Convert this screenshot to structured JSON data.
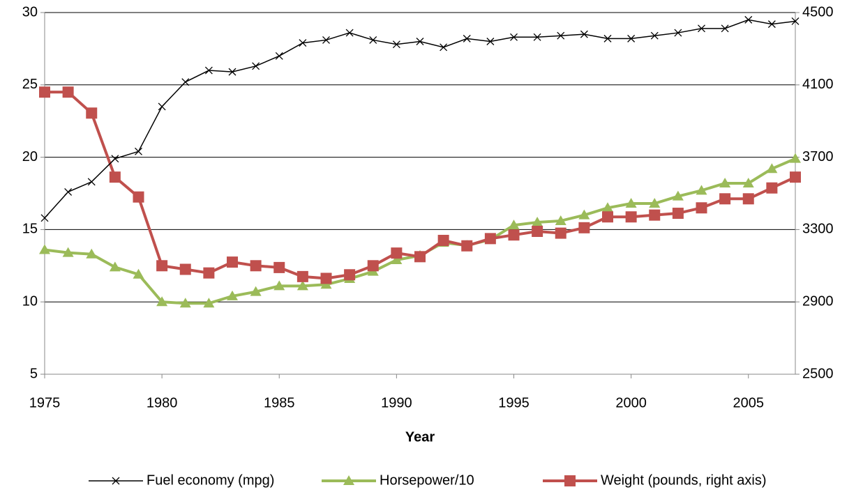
{
  "chart_data": {
    "type": "line",
    "x": [
      1975,
      1976,
      1977,
      1978,
      1979,
      1980,
      1981,
      1982,
      1983,
      1984,
      1985,
      1986,
      1987,
      1988,
      1989,
      1990,
      1991,
      1992,
      1993,
      1994,
      1995,
      1996,
      1997,
      1998,
      1999,
      2000,
      2001,
      2002,
      2003,
      2004,
      2005,
      2006,
      2007
    ],
    "xlim": [
      1975,
      2007
    ],
    "xticks": [
      1975,
      1980,
      1985,
      1990,
      1995,
      2000,
      2005
    ],
    "ylim": [
      5,
      30
    ],
    "yticks": [
      5,
      10,
      15,
      20,
      25,
      30
    ],
    "y2lim": [
      2500,
      4500
    ],
    "y2ticks": [
      2500,
      2900,
      3300,
      3700,
      4100,
      4500
    ],
    "xlabel": "Year",
    "grid": true,
    "legend": "bottom",
    "series": [
      {
        "name": "Fuel economy (mpg)",
        "color": "#000000",
        "marker": "x",
        "values": [
          15.8,
          17.6,
          18.3,
          19.9,
          20.4,
          23.5,
          25.2,
          26.0,
          25.9,
          26.3,
          27.0,
          27.9,
          28.1,
          28.6,
          28.1,
          27.8,
          28.0,
          27.6,
          28.2,
          28.0,
          28.3,
          28.3,
          28.4,
          28.5,
          28.2,
          28.2,
          28.4,
          28.6,
          28.9,
          28.9,
          29.5,
          29.2,
          29.4
        ]
      },
      {
        "name": "Horsepower/10",
        "color": "#9bbb59",
        "marker": "triangle",
        "values": [
          13.6,
          13.4,
          13.3,
          12.4,
          11.9,
          10.0,
          9.9,
          9.9,
          10.4,
          10.7,
          11.1,
          11.1,
          11.2,
          11.6,
          12.1,
          12.9,
          13.2,
          14.1,
          13.9,
          14.3,
          15.3,
          15.5,
          15.6,
          16.0,
          16.5,
          16.8,
          16.8,
          17.3,
          17.7,
          18.2,
          18.2,
          19.2,
          19.9
        ]
      },
      {
        "name": "Weight (pounds, right axis)",
        "color": "#c0504d",
        "marker": "square",
        "axis": "y2",
        "values": [
          4060,
          4060,
          3944,
          3590,
          3480,
          3100,
          3080,
          3060,
          3120,
          3100,
          3090,
          3040,
          3030,
          3050,
          3100,
          3170,
          3150,
          3240,
          3210,
          3250,
          3270,
          3290,
          3280,
          3310,
          3370,
          3370,
          3380,
          3390,
          3420,
          3470,
          3470,
          3530,
          3590
        ]
      }
    ]
  }
}
